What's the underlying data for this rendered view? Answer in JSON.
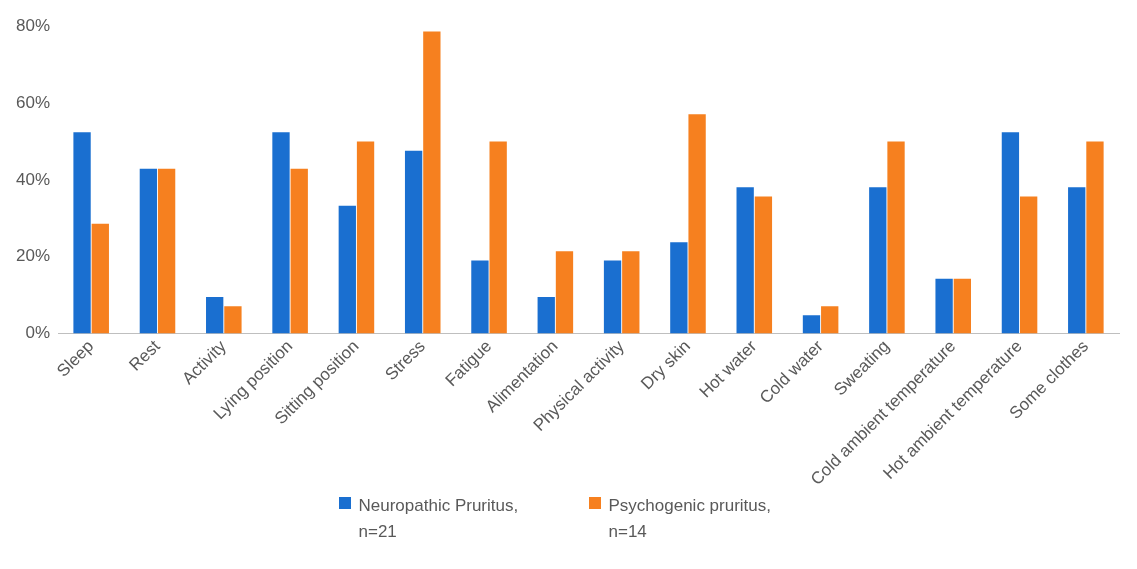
{
  "chart_data": {
    "type": "bar",
    "categories": [
      "Sleep",
      "Rest",
      "Activity",
      "Lying position",
      "Sitting position",
      "Stress",
      "Fatigue",
      "Alimentation",
      "Physical activity",
      "Dry skin",
      "Hot water",
      "Cold water",
      "Sweating",
      "Cold ambient temperature",
      "Hot ambient temperature",
      "Some clothes"
    ],
    "series": [
      {
        "name": "Neuropathic Pruritus, n=21",
        "color": "#1a6fd0",
        "values": [
          52.4,
          42.9,
          9.5,
          52.4,
          33.3,
          47.6,
          19.0,
          9.5,
          19.0,
          23.8,
          38.1,
          4.8,
          38.1,
          14.3,
          52.4,
          38.1
        ]
      },
      {
        "name": "Psychogenic pruritus, n=14",
        "color": "#f6801f",
        "values": [
          28.6,
          42.9,
          7.1,
          42.9,
          50.0,
          78.6,
          50.0,
          21.4,
          21.4,
          57.1,
          35.7,
          7.1,
          50.0,
          14.3,
          35.7,
          50.0
        ]
      }
    ],
    "ylim": [
      0,
      80
    ],
    "yticks": [
      {
        "value": 0,
        "label": "0%"
      },
      {
        "value": 20,
        "label": "20%"
      },
      {
        "value": 40,
        "label": "40%"
      },
      {
        "value": 60,
        "label": "60%"
      },
      {
        "value": 80,
        "label": "80%"
      }
    ],
    "grid": false,
    "legend": "bottom"
  }
}
